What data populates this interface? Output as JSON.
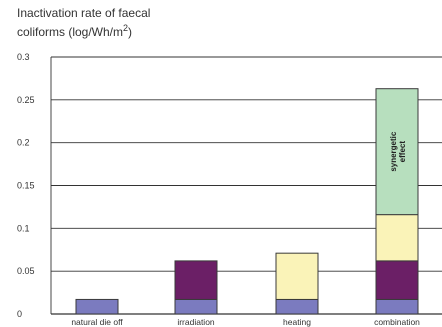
{
  "chart_data": {
    "type": "bar",
    "stacked": true,
    "title_lines": [
      "Inactivation rate of faecal",
      "coliforms (log/Wh/m"
    ],
    "title_superscript": "2",
    "title_close": ")",
    "categories": [
      "natural die off",
      "irradiation",
      "heating",
      "combination"
    ],
    "series": [
      {
        "values": [
          0.017,
          0.017,
          0.017,
          0.017
        ],
        "color": "#7b7bbf"
      },
      {
        "values": [
          0,
          0.045,
          0,
          0.045
        ],
        "color": "#6b1f66"
      },
      {
        "values": [
          0,
          0,
          0.054,
          0.054
        ],
        "color": "#faf3b8"
      },
      {
        "values": [
          0,
          0,
          0,
          0.147
        ],
        "color": "#b7dfbe"
      }
    ],
    "y_ticks": [
      "0",
      "0.05",
      "0.1",
      "0.15",
      "0.2",
      "0.25",
      "0.3"
    ],
    "y_tick_values": [
      0,
      0.05,
      0.1,
      0.15,
      0.2,
      0.25,
      0.3
    ],
    "ylim": [
      0,
      0.3
    ],
    "grid": true,
    "annotation": {
      "lines": [
        "synergetic",
        "effect"
      ],
      "category_index": 3,
      "series_index": 3
    },
    "colors": {
      "gridline": "#333333",
      "bar_edge": "#3a3a3a",
      "text": "#333333"
    }
  }
}
